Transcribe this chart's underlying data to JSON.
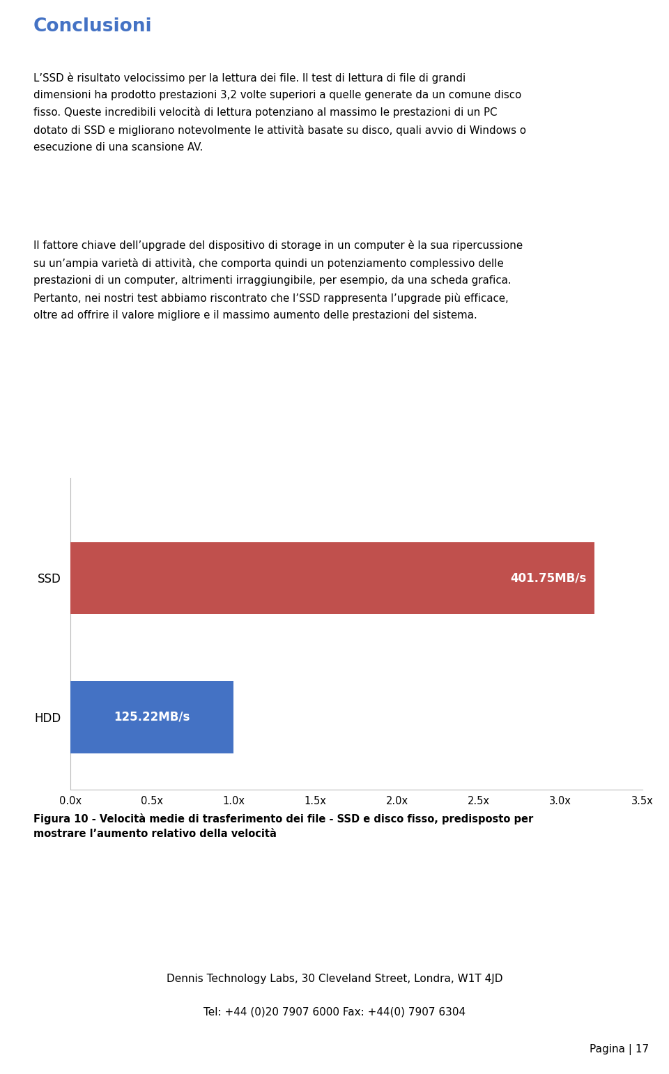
{
  "title_text": "Conclusioni",
  "title_color": "#4472C4",
  "para1": "L’SSD è risultato velocissimo per la lettura dei file. Il test di lettura di file di grandi dimensioni ha prodotto prestazioni 3,2 volte superiori a quelle generate da un comune disco fisso. Queste incredibili velocità di lettura potenziano al massimo le prestazioni di un PC dotato di SSD e migliorano notevolmente le attività basate su disco, quali avvio di Windows o esecuzione di una scansione AV.",
  "para2": "Il fattore chiave dell’upgrade del dispositivo di storage in un computer è la sua ripercussione su un’ampia varietà di attività, che comporta quindi un potenziamento complessivo delle prestazioni di un computer, altrimenti irraggiungibile, per esempio, da una scheda grafica. Pertanto, nei nostri test abbiamo riscontrato che l’SSD rappresenta l’upgrade più efficace, oltre ad offrire il valore migliore e il massimo aumento delle prestazioni del sistema.",
  "categories": [
    "SSD",
    "HDD"
  ],
  "ssd_value": 401.75,
  "hdd_value": 125.22,
  "bar_colors": [
    "#C0504D",
    "#4472C4"
  ],
  "value_labels": [
    "401.75MB/s",
    "125.22MB/s"
  ],
  "x_max": 3.5,
  "x_ticks": [
    0.0,
    0.5,
    1.0,
    1.5,
    2.0,
    2.5,
    3.0,
    3.5
  ],
  "x_tick_labels": [
    "0.0x",
    "0.5x",
    "1.0x",
    "1.5x",
    "2.0x",
    "2.5x",
    "3.0x",
    "3.5x"
  ],
  "caption_bold": "Figura 10 - Velocità medie di trasferimento dei file - SSD e disco fisso, predisposto per mostrare l’aumento relativo della velocità",
  "footer_line1": "Dennis Technology Labs, 30 Cleveland Street, Londra, W1T 4JD",
  "footer_line2": "Tel: +44 (0)20 7907 6000 Fax: +44(0) 7907 6304",
  "page_text": "Pagina | 17",
  "background_color": "#FFFFFF",
  "text_color": "#000000",
  "border_color": "#BBBBBB"
}
